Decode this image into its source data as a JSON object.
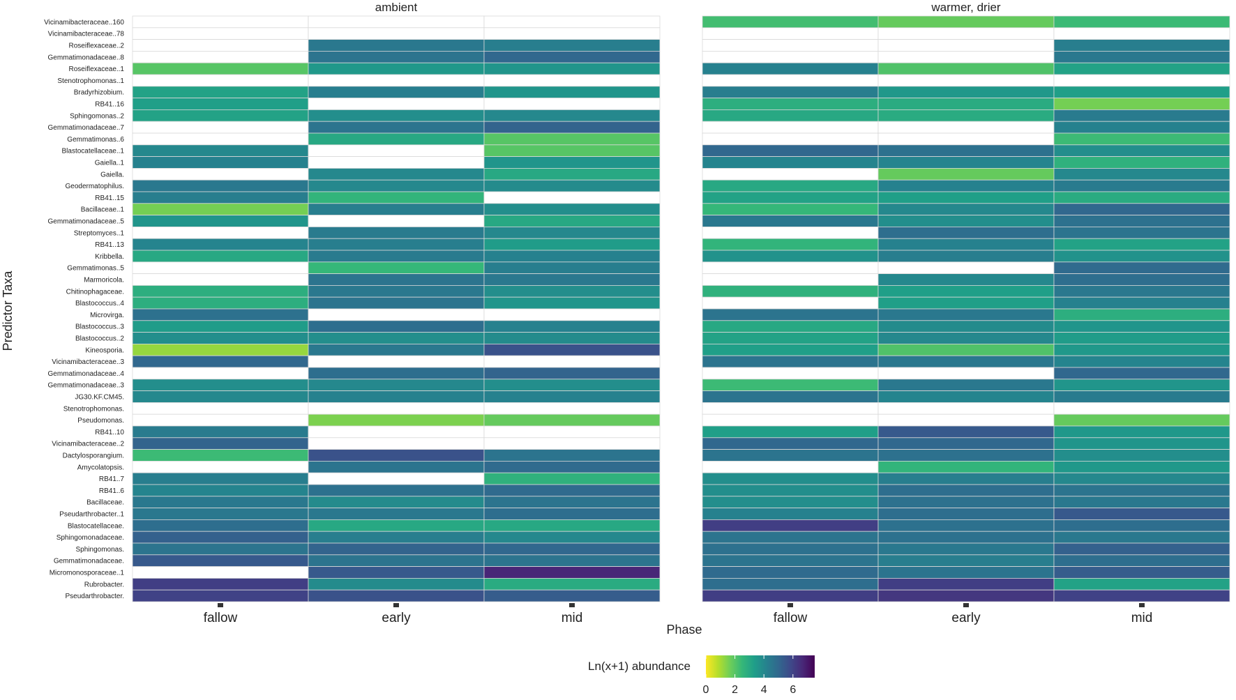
{
  "chart_data": {
    "type": "heatmap",
    "title": "",
    "xlabel": "Phase",
    "ylabel": "Predictor Taxa",
    "facets": [
      "ambient",
      "warmer, drier"
    ],
    "phases": [
      "fallow",
      "early",
      "mid"
    ],
    "legend": {
      "title": "Ln(x+1) abundance",
      "ticks": [
        0,
        2,
        4,
        6
      ],
      "range": [
        0,
        7.5
      ],
      "palette": "viridis (reversed)"
    },
    "colors": {
      "missing": "#ffffff",
      "grid": "#d9d9d9",
      "background": "#ffffff"
    },
    "rows": [
      "Vicinamibacteraceae..160",
      "Vicinamibacteraceae..78",
      "Roseiflexaceae..2",
      "Gemmatimonadaceae..8",
      "Roseiflexaceae..1",
      "Stenotrophomonas..1",
      "Bradyrhizobium.",
      "RB41..16",
      "Sphingomonas..2",
      "Gemmatimonadaceae..7",
      "Gemmatimonas..6",
      "Blastocatellaceae..1",
      "Gaiella..1",
      "Gaiella.",
      "Geodermatophilus.",
      "RB41..15",
      "Bacillaceae..1",
      "Gemmatimonadaceae..5",
      "Streptomyces..1",
      "RB41..13",
      "Kribbella.",
      "Gemmatimonas..5",
      "Marmoricola.",
      "Chitinophagaceae.",
      "Blastococcus..4",
      "Microvirga.",
      "Blastococcus..3",
      "Blastococcus..2",
      "Kineosporia.",
      "Vicinamibacteraceae..3",
      "Gemmatimonadaceae..4",
      "Gemmatimonadaceae..3",
      "JG30.KF.CM45.",
      "Stenotrophomonas.",
      "Pseudomonas.",
      "RB41..10",
      "Vicinamibacteraceae..2",
      "Dactylosporangium.",
      "Amycolatopsis.",
      "RB41..7",
      "RB41..6",
      "Bacillaceae.",
      "Pseudarthrobacter..1",
      "Blastocatellaceae.",
      "Sphingomonadaceae.",
      "Sphingomonas.",
      "Gemmatimonadaceae.",
      "Micromonosporaceae..1",
      "Rubrobacter.",
      "Pseudarthrobacter."
    ],
    "values": {
      "ambient": [
        [
          null,
          null,
          null
        ],
        [
          null,
          null,
          null
        ],
        [
          null,
          4.5,
          4.3
        ],
        [
          null,
          4.6,
          5.0
        ],
        [
          2.0,
          3.5,
          3.6
        ],
        [
          null,
          null,
          null
        ],
        [
          3.2,
          4.3,
          3.6
        ],
        [
          3.3,
          null,
          null
        ],
        [
          3.2,
          3.8,
          4.0
        ],
        [
          null,
          4.6,
          5.1
        ],
        [
          null,
          3.0,
          2.0
        ],
        [
          4.0,
          null,
          2.0
        ],
        [
          4.2,
          null,
          3.6
        ],
        [
          null,
          4.0,
          3.0
        ],
        [
          4.5,
          4.0,
          3.9
        ],
        [
          4.3,
          2.6,
          null
        ],
        [
          1.6,
          4.3,
          3.8
        ],
        [
          3.6,
          null,
          3.0
        ],
        [
          null,
          4.4,
          4.0
        ],
        [
          4.1,
          4.3,
          3.4
        ],
        [
          3.0,
          4.4,
          4.2
        ],
        [
          null,
          2.5,
          4.3
        ],
        [
          null,
          4.6,
          4.5
        ],
        [
          2.8,
          4.5,
          3.8
        ],
        [
          2.8,
          4.6,
          3.6
        ],
        [
          4.7,
          null,
          null
        ],
        [
          3.4,
          4.8,
          4.2
        ],
        [
          3.8,
          3.8,
          3.9
        ],
        [
          1.2,
          4.5,
          5.6
        ],
        [
          5.0,
          null,
          null
        ],
        [
          null,
          4.8,
          5.1
        ],
        [
          3.8,
          4.0,
          3.8
        ],
        [
          4.0,
          4.2,
          4.2
        ],
        [
          null,
          null,
          null
        ],
        [
          null,
          1.5,
          1.8
        ],
        [
          4.4,
          null,
          null
        ],
        [
          5.1,
          null,
          null
        ],
        [
          2.4,
          5.6,
          4.6
        ],
        [
          null,
          4.6,
          4.9
        ],
        [
          4.3,
          null,
          2.7
        ],
        [
          4.1,
          4.7,
          4.9
        ],
        [
          4.5,
          3.9,
          4.6
        ],
        [
          4.5,
          4.5,
          4.8
        ],
        [
          4.8,
          3.0,
          3.0
        ],
        [
          5.2,
          4.3,
          4.0
        ],
        [
          4.6,
          5.1,
          5.0
        ],
        [
          5.4,
          4.6,
          4.6
        ],
        [
          null,
          5.4,
          6.7
        ],
        [
          6.1,
          3.9,
          2.9
        ],
        [
          6.0,
          5.6,
          5.3
        ]
      ],
      "warmer, drier": [
        [
          2.3,
          1.8,
          2.4
        ],
        [
          null,
          null,
          null
        ],
        [
          null,
          null,
          4.3
        ],
        [
          null,
          null,
          4.5
        ],
        [
          4.2,
          2.1,
          3.2
        ],
        [
          null,
          null,
          null
        ],
        [
          4.3,
          3.5,
          3.3
        ],
        [
          2.8,
          2.9,
          1.6
        ],
        [
          3.0,
          2.9,
          4.4
        ],
        [
          null,
          null,
          4.2
        ],
        [
          null,
          null,
          2.4
        ],
        [
          5.0,
          4.7,
          3.8
        ],
        [
          4.1,
          4.1,
          2.7
        ],
        [
          null,
          1.8,
          4.0
        ],
        [
          3.0,
          4.2,
          4.4
        ],
        [
          3.2,
          3.3,
          2.9
        ],
        [
          2.5,
          4.0,
          5.0
        ],
        [
          4.5,
          3.8,
          4.7
        ],
        [
          null,
          4.8,
          4.6
        ],
        [
          2.6,
          4.2,
          3.2
        ],
        [
          3.7,
          4.3,
          3.7
        ],
        [
          null,
          null,
          4.9
        ],
        [
          null,
          4.0,
          4.8
        ],
        [
          2.7,
          3.3,
          4.5
        ],
        [
          null,
          3.3,
          4.2
        ],
        [
          4.6,
          4.5,
          2.8
        ],
        [
          3.0,
          3.9,
          3.6
        ],
        [
          3.2,
          4.0,
          3.4
        ],
        [
          3.3,
          2.1,
          3.5
        ],
        [
          4.6,
          4.5,
          4.1
        ],
        [
          null,
          null,
          5.0
        ],
        [
          2.4,
          4.5,
          3.6
        ],
        [
          4.6,
          4.1,
          4.4
        ],
        [
          null,
          null,
          null
        ],
        [
          null,
          null,
          1.8
        ],
        [
          3.3,
          5.4,
          3.5
        ],
        [
          5.0,
          5.0,
          3.6
        ],
        [
          4.6,
          4.7,
          3.8
        ],
        [
          null,
          2.6,
          3.5
        ],
        [
          3.8,
          4.3,
          4.0
        ],
        [
          3.8,
          4.8,
          4.6
        ],
        [
          3.8,
          4.7,
          4.5
        ],
        [
          4.2,
          4.8,
          5.4
        ],
        [
          6.1,
          4.7,
          4.8
        ],
        [
          4.6,
          4.7,
          4.5
        ],
        [
          4.7,
          4.5,
          5.2
        ],
        [
          4.6,
          4.3,
          4.8
        ],
        [
          4.9,
          4.6,
          5.3
        ],
        [
          4.8,
          6.1,
          3.2
        ],
        [
          6.1,
          6.3,
          6.0
        ]
      ]
    }
  }
}
